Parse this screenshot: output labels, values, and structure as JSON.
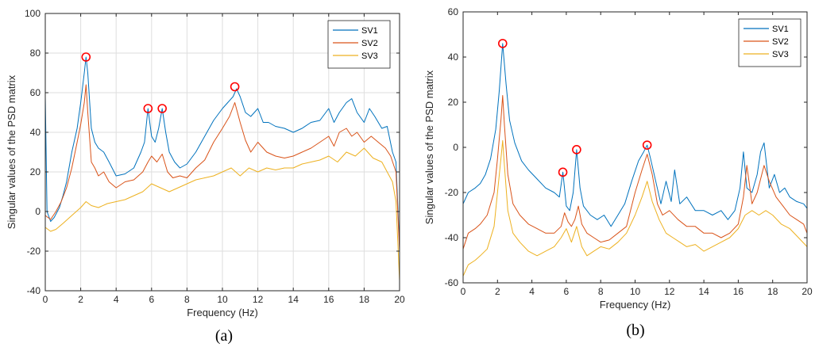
{
  "chart_data": [
    {
      "type": "line",
      "panel_label": "(a)",
      "xlabel": "Frequency (Hz)",
      "ylabel": "Singular values of the PSD matrix",
      "xlim": [
        0,
        20
      ],
      "ylim": [
        -40,
        100
      ],
      "xticks": [
        0,
        2,
        4,
        6,
        8,
        10,
        12,
        14,
        16,
        18,
        20
      ],
      "yticks": [
        -40,
        -20,
        0,
        20,
        40,
        60,
        80,
        100
      ],
      "grid": true,
      "legend_position": "top-right",
      "series": [
        {
          "name": "SV1",
          "color": "#0072BD",
          "x": [
            0,
            0.1,
            0.3,
            0.5,
            0.8,
            1.0,
            1.2,
            1.5,
            1.8,
            2.0,
            2.2,
            2.3,
            2.4,
            2.6,
            2.8,
            3.0,
            3.3,
            3.6,
            4.0,
            4.5,
            5.0,
            5.4,
            5.6,
            5.8,
            6.0,
            6.2,
            6.4,
            6.6,
            6.8,
            7.0,
            7.3,
            7.6,
            8.0,
            8.5,
            9.0,
            9.5,
            10.0,
            10.3,
            10.6,
            10.8,
            11.0,
            11.3,
            11.6,
            12.0,
            12.3,
            12.6,
            13.0,
            13.5,
            14.0,
            14.5,
            15.0,
            15.5,
            16.0,
            16.3,
            16.6,
            17.0,
            17.3,
            17.6,
            18.0,
            18.3,
            18.6,
            19.0,
            19.3,
            19.6,
            19.8,
            20.0
          ],
          "y": [
            58,
            0,
            -5,
            -3,
            2,
            8,
            15,
            30,
            42,
            55,
            70,
            78,
            70,
            42,
            35,
            32,
            30,
            25,
            18,
            19,
            22,
            30,
            35,
            52,
            38,
            35,
            42,
            52,
            40,
            30,
            25,
            22,
            24,
            30,
            38,
            46,
            52,
            55,
            58,
            62,
            58,
            50,
            48,
            52,
            45,
            45,
            43,
            42,
            40,
            42,
            45,
            46,
            52,
            45,
            50,
            55,
            57,
            50,
            45,
            52,
            48,
            42,
            43,
            30,
            25,
            -18
          ]
        },
        {
          "name": "SV2",
          "color": "#D95319",
          "x": [
            0,
            0.3,
            0.6,
            0.9,
            1.2,
            1.5,
            1.8,
            2.0,
            2.2,
            2.3,
            2.4,
            2.6,
            2.8,
            3.0,
            3.3,
            3.6,
            4.0,
            4.5,
            5.0,
            5.5,
            5.8,
            6.0,
            6.3,
            6.6,
            6.9,
            7.2,
            7.6,
            8.0,
            8.5,
            9.0,
            9.5,
            10.0,
            10.4,
            10.7,
            11.0,
            11.3,
            11.6,
            12.0,
            12.5,
            13.0,
            13.5,
            14.0,
            14.5,
            15.0,
            15.5,
            16.0,
            16.3,
            16.6,
            17.0,
            17.3,
            17.6,
            18.0,
            18.4,
            18.8,
            19.2,
            19.5,
            19.8,
            20.0
          ],
          "y": [
            -2,
            -4,
            0,
            5,
            12,
            22,
            35,
            44,
            55,
            64,
            50,
            25,
            22,
            18,
            20,
            15,
            12,
            15,
            16,
            20,
            25,
            28,
            25,
            29,
            20,
            17,
            18,
            17,
            22,
            26,
            35,
            42,
            48,
            55,
            45,
            36,
            30,
            35,
            30,
            28,
            27,
            28,
            30,
            32,
            35,
            38,
            33,
            40,
            42,
            38,
            40,
            35,
            38,
            35,
            32,
            28,
            20,
            -20
          ]
        },
        {
          "name": "SV3",
          "color": "#EDB120",
          "x": [
            0,
            0.3,
            0.6,
            1.0,
            1.5,
            2.0,
            2.3,
            2.6,
            3.0,
            3.5,
            4.0,
            4.5,
            5.0,
            5.5,
            6.0,
            6.5,
            7.0,
            7.5,
            8.0,
            8.5,
            9.0,
            9.5,
            10.0,
            10.5,
            11.0,
            11.5,
            12.0,
            12.5,
            13.0,
            13.5,
            14.0,
            14.5,
            15.0,
            15.5,
            16.0,
            16.5,
            17.0,
            17.5,
            18.0,
            18.5,
            19.0,
            19.3,
            19.6,
            19.8,
            20.0
          ],
          "y": [
            -8,
            -10,
            -9,
            -6,
            -2,
            2,
            5,
            3,
            2,
            4,
            5,
            6,
            8,
            10,
            14,
            12,
            10,
            12,
            14,
            16,
            17,
            18,
            20,
            22,
            18,
            22,
            20,
            22,
            21,
            22,
            22,
            24,
            25,
            26,
            28,
            25,
            30,
            28,
            32,
            27,
            25,
            20,
            15,
            5,
            -35
          ]
        }
      ],
      "peaks": [
        {
          "x": 2.3,
          "y": 78
        },
        {
          "x": 5.8,
          "y": 52
        },
        {
          "x": 6.6,
          "y": 52
        },
        {
          "x": 10.7,
          "y": 63
        }
      ]
    },
    {
      "type": "line",
      "panel_label": "(b)",
      "xlabel": "Frequency (Hz)",
      "ylabel": "Singular values of the PSD matrix",
      "xlim": [
        0,
        20
      ],
      "ylim": [
        -60,
        60
      ],
      "xticks": [
        0,
        2,
        4,
        6,
        8,
        10,
        12,
        14,
        16,
        18,
        20
      ],
      "yticks": [
        -60,
        -40,
        -20,
        0,
        20,
        40,
        60
      ],
      "grid": false,
      "legend_position": "top-right",
      "series": [
        {
          "name": "SV1",
          "color": "#0072BD",
          "x": [
            0,
            0.3,
            0.7,
            1.0,
            1.3,
            1.6,
            1.9,
            2.1,
            2.3,
            2.5,
            2.7,
            3.0,
            3.4,
            3.8,
            4.3,
            4.8,
            5.3,
            5.6,
            5.8,
            6.0,
            6.2,
            6.4,
            6.6,
            6.8,
            7.0,
            7.4,
            7.8,
            8.2,
            8.6,
            9.0,
            9.4,
            9.8,
            10.2,
            10.5,
            10.7,
            10.9,
            11.2,
            11.5,
            11.8,
            12.1,
            12.3,
            12.6,
            13.0,
            13.5,
            14.0,
            14.5,
            15.0,
            15.4,
            15.8,
            16.1,
            16.3,
            16.5,
            16.8,
            17.1,
            17.3,
            17.5,
            17.8,
            18.1,
            18.4,
            18.7,
            19.0,
            19.4,
            19.8,
            20.0
          ],
          "y": [
            -25,
            -20,
            -18,
            -16,
            -12,
            -5,
            8,
            25,
            46,
            28,
            12,
            2,
            -6,
            -10,
            -14,
            -18,
            -20,
            -22,
            -11,
            -26,
            -28,
            -20,
            -1,
            -18,
            -26,
            -30,
            -32,
            -30,
            -35,
            -30,
            -25,
            -15,
            -6,
            -2,
            1,
            -5,
            -15,
            -25,
            -15,
            -24,
            -10,
            -25,
            -22,
            -28,
            -28,
            -30,
            -28,
            -32,
            -28,
            -18,
            -2,
            -18,
            -20,
            -12,
            -2,
            2,
            -18,
            -12,
            -20,
            -18,
            -22,
            -24,
            -25,
            -27
          ]
        },
        {
          "name": "SV2",
          "color": "#D95319",
          "x": [
            0,
            0.3,
            0.7,
            1.0,
            1.4,
            1.8,
            2.0,
            2.2,
            2.3,
            2.4,
            2.6,
            2.9,
            3.3,
            3.8,
            4.3,
            4.8,
            5.3,
            5.7,
            5.9,
            6.1,
            6.3,
            6.5,
            6.7,
            6.9,
            7.2,
            7.6,
            8.0,
            8.5,
            9.0,
            9.5,
            10.0,
            10.4,
            10.7,
            11.0,
            11.3,
            11.6,
            12.0,
            12.5,
            13.0,
            13.5,
            14.0,
            14.5,
            15.0,
            15.5,
            16.0,
            16.3,
            16.5,
            16.8,
            17.1,
            17.5,
            17.8,
            18.2,
            18.6,
            19.0,
            19.4,
            19.8,
            20.0
          ],
          "y": [
            -45,
            -38,
            -36,
            -34,
            -30,
            -20,
            -5,
            12,
            23,
            10,
            -12,
            -25,
            -30,
            -34,
            -36,
            -38,
            -38,
            -35,
            -29,
            -33,
            -35,
            -32,
            -26,
            -34,
            -38,
            -40,
            -42,
            -41,
            -38,
            -35,
            -20,
            -10,
            -3,
            -12,
            -25,
            -30,
            -28,
            -32,
            -35,
            -35,
            -38,
            -38,
            -40,
            -38,
            -34,
            -22,
            -8,
            -25,
            -20,
            -8,
            -15,
            -22,
            -26,
            -30,
            -32,
            -34,
            -38
          ]
        },
        {
          "name": "SV3",
          "color": "#EDB120",
          "x": [
            0,
            0.3,
            0.7,
            1.0,
            1.4,
            1.8,
            2.0,
            2.2,
            2.3,
            2.4,
            2.6,
            2.9,
            3.3,
            3.8,
            4.3,
            4.8,
            5.3,
            5.7,
            6.0,
            6.3,
            6.6,
            6.9,
            7.2,
            7.6,
            8.0,
            8.5,
            9.0,
            9.5,
            10.0,
            10.4,
            10.7,
            11.0,
            11.4,
            11.8,
            12.2,
            12.6,
            13.0,
            13.5,
            14.0,
            14.5,
            15.0,
            15.5,
            16.0,
            16.4,
            16.8,
            17.2,
            17.6,
            18.0,
            18.5,
            19.0,
            19.5,
            20.0
          ],
          "y": [
            -57,
            -52,
            -50,
            -48,
            -45,
            -35,
            -20,
            -5,
            3,
            -8,
            -28,
            -38,
            -42,
            -46,
            -48,
            -46,
            -44,
            -40,
            -36,
            -42,
            -35,
            -44,
            -48,
            -46,
            -44,
            -45,
            -42,
            -38,
            -30,
            -22,
            -15,
            -24,
            -32,
            -38,
            -40,
            -42,
            -44,
            -43,
            -46,
            -44,
            -42,
            -40,
            -36,
            -30,
            -28,
            -30,
            -28,
            -30,
            -34,
            -36,
            -40,
            -44
          ]
        }
      ],
      "peaks": [
        {
          "x": 2.3,
          "y": 46
        },
        {
          "x": 5.8,
          "y": -11
        },
        {
          "x": 6.6,
          "y": -1
        },
        {
          "x": 10.7,
          "y": 1
        }
      ]
    }
  ]
}
